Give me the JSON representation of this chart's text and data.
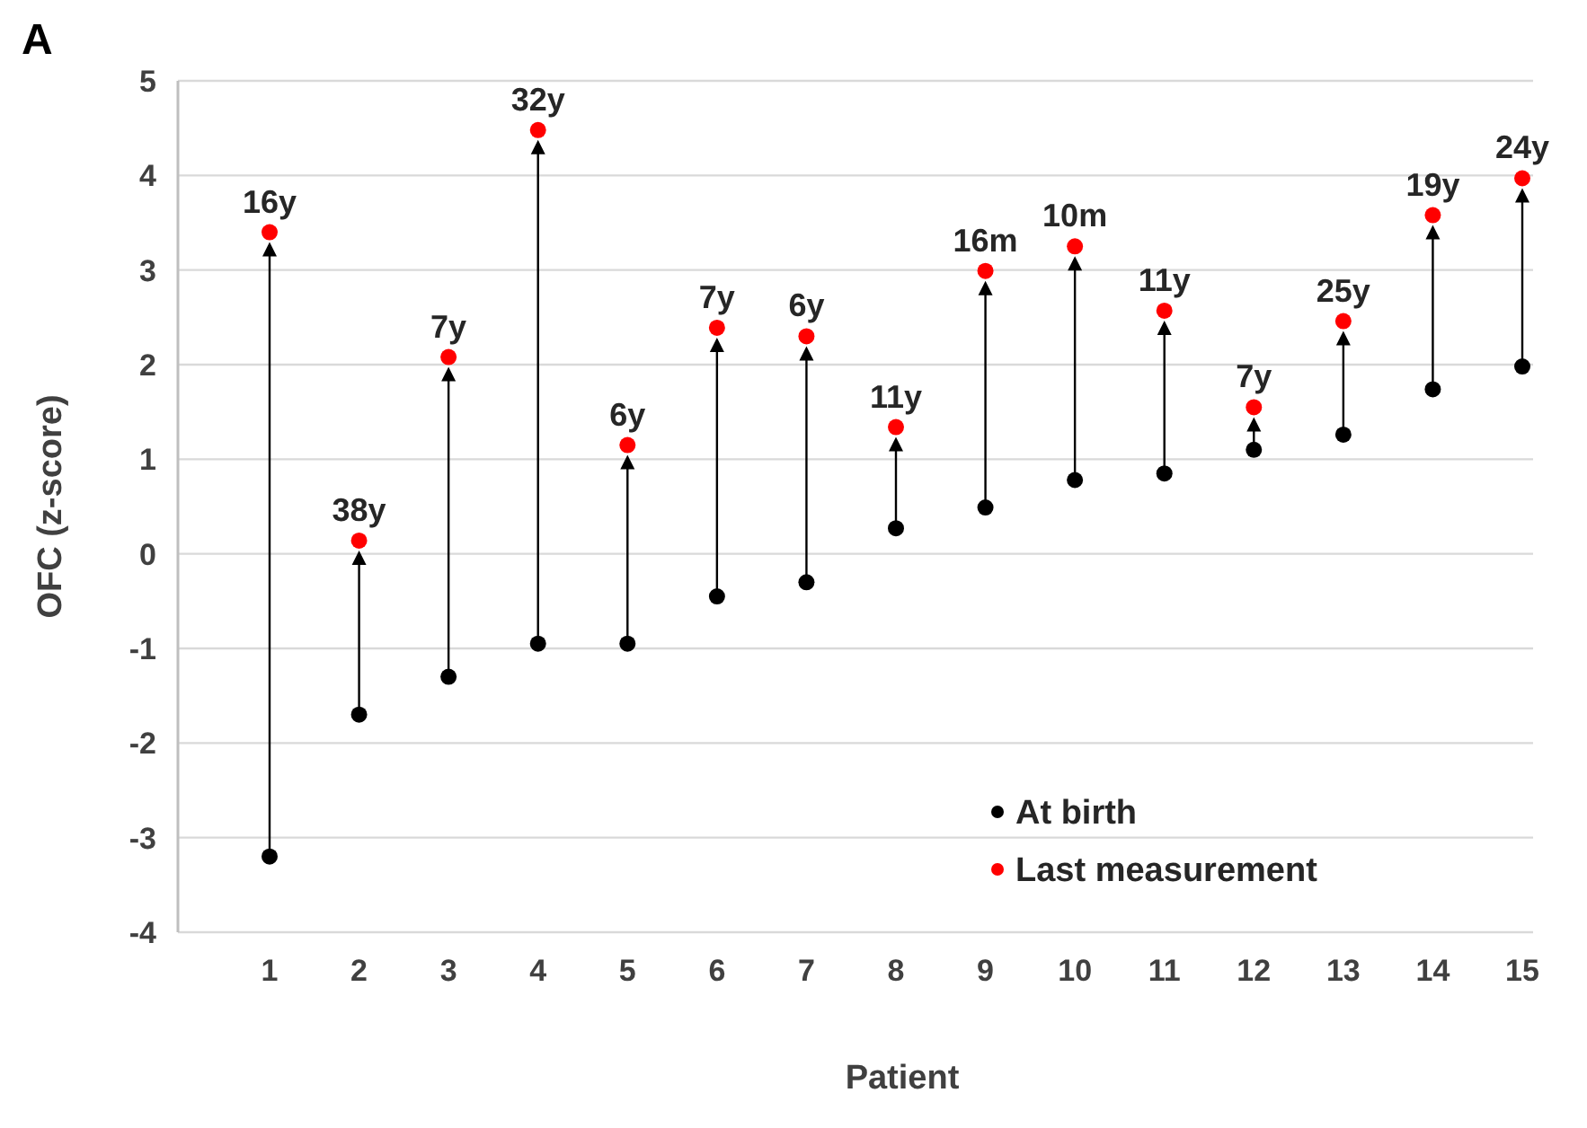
{
  "chart_data": {
    "type": "scatter",
    "title": "A",
    "xlabel": "Patient",
    "ylabel": "OFC (z-score)",
    "categories": [
      "1",
      "2",
      "3",
      "4",
      "5",
      "6",
      "7",
      "8",
      "9",
      "10",
      "11",
      "12",
      "13",
      "14",
      "15"
    ],
    "series": [
      {
        "name": "At birth",
        "color": "#000000",
        "values": [
          -3.2,
          -1.7,
          -1.3,
          -0.95,
          -0.95,
          -0.45,
          -0.3,
          0.27,
          0.49,
          0.78,
          0.85,
          1.1,
          1.26,
          1.74,
          1.98
        ]
      },
      {
        "name": "Last measurement",
        "color": "#ff0000",
        "values": [
          3.4,
          0.14,
          2.08,
          4.48,
          1.15,
          2.39,
          2.3,
          1.34,
          2.99,
          3.25,
          2.57,
          1.55,
          2.46,
          3.58,
          3.97
        ]
      }
    ],
    "annotations": [
      {
        "text": "16y",
        "x": "1",
        "y": 3.4
      },
      {
        "text": "38y",
        "x": "2",
        "y": 0.14
      },
      {
        "text": "7y",
        "x": "3",
        "y": 2.08
      },
      {
        "text": "32y",
        "x": "4",
        "y": 4.48
      },
      {
        "text": "6y",
        "x": "5",
        "y": 1.15
      },
      {
        "text": "7y",
        "x": "6",
        "y": 2.39
      },
      {
        "text": "6y",
        "x": "7",
        "y": 2.3
      },
      {
        "text": "11y",
        "x": "8",
        "y": 1.34
      },
      {
        "text": "16m",
        "x": "9",
        "y": 2.99
      },
      {
        "text": "10m",
        "x": "10",
        "y": 3.25
      },
      {
        "text": "11y",
        "x": "11",
        "y": 2.57
      },
      {
        "text": "7y",
        "x": "12",
        "y": 1.55
      },
      {
        "text": "25y",
        "x": "13",
        "y": 2.46
      },
      {
        "text": "19y",
        "x": "14",
        "y": 3.58
      },
      {
        "text": "24y",
        "x": "15",
        "y": 3.97
      }
    ],
    "ylim": [
      -4,
      5
    ],
    "yticks": [
      -4,
      -3,
      -2,
      -1,
      0,
      1,
      2,
      3,
      4,
      5
    ],
    "grid": "y",
    "legend": "bottom right",
    "marker": "circle"
  }
}
